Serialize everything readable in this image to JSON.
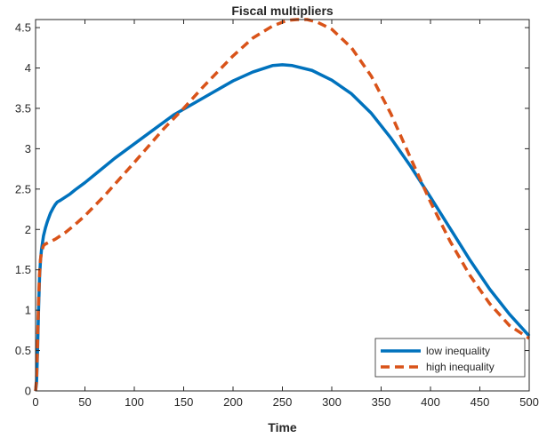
{
  "chart_data": {
    "type": "line",
    "title": "Fiscal multipliers",
    "xlabel": "Time",
    "ylabel": "",
    "xlim": [
      0,
      500
    ],
    "ylim": [
      0,
      4.6
    ],
    "xticks": [
      "0",
      "50",
      "100",
      "150",
      "200",
      "250",
      "300",
      "350",
      "400",
      "450",
      "500"
    ],
    "yticks": [
      "0",
      "0.5",
      "1",
      "1.5",
      "2",
      "2.5",
      "3",
      "3.5",
      "4",
      "4.5"
    ],
    "grid": false,
    "legend_position": "bottom-right",
    "series": [
      {
        "name": "low inequality",
        "color": "#0072BD",
        "style": "solid",
        "x": [
          0,
          1,
          2,
          3,
          4,
          5,
          6,
          8,
          10,
          12,
          15,
          18,
          20,
          22,
          25,
          30,
          35,
          40,
          50,
          60,
          80,
          100,
          120,
          140,
          160,
          180,
          200,
          220,
          240,
          250,
          260,
          280,
          300,
          320,
          340,
          360,
          380,
          400,
          420,
          440,
          460,
          480,
          500
        ],
        "y": [
          0,
          0.1,
          0.5,
          1.0,
          1.4,
          1.62,
          1.75,
          1.92,
          2.02,
          2.1,
          2.2,
          2.27,
          2.31,
          2.34,
          2.36,
          2.4,
          2.44,
          2.49,
          2.58,
          2.68,
          2.88,
          3.06,
          3.24,
          3.42,
          3.56,
          3.7,
          3.84,
          3.95,
          4.03,
          4.04,
          4.03,
          3.97,
          3.85,
          3.68,
          3.44,
          3.13,
          2.78,
          2.4,
          2.01,
          1.62,
          1.26,
          0.95,
          0.68
        ]
      },
      {
        "name": "high inequality",
        "color": "#D95319",
        "style": "dashed",
        "x": [
          0,
          1,
          2,
          3,
          4,
          5,
          6,
          8,
          10,
          15,
          20,
          30,
          40,
          50,
          70,
          100,
          130,
          150,
          170,
          200,
          220,
          240,
          255,
          265,
          275,
          285,
          300,
          320,
          340,
          360,
          380,
          400,
          420,
          440,
          460,
          480,
          500
        ],
        "y": [
          0,
          0.15,
          0.6,
          1.1,
          1.45,
          1.63,
          1.72,
          1.8,
          1.82,
          1.85,
          1.88,
          1.96,
          2.06,
          2.17,
          2.42,
          2.83,
          3.25,
          3.5,
          3.77,
          4.15,
          4.37,
          4.52,
          4.59,
          4.6,
          4.6,
          4.57,
          4.48,
          4.25,
          3.9,
          3.43,
          2.88,
          2.34,
          1.85,
          1.43,
          1.08,
          0.81,
          0.65
        ]
      }
    ]
  }
}
